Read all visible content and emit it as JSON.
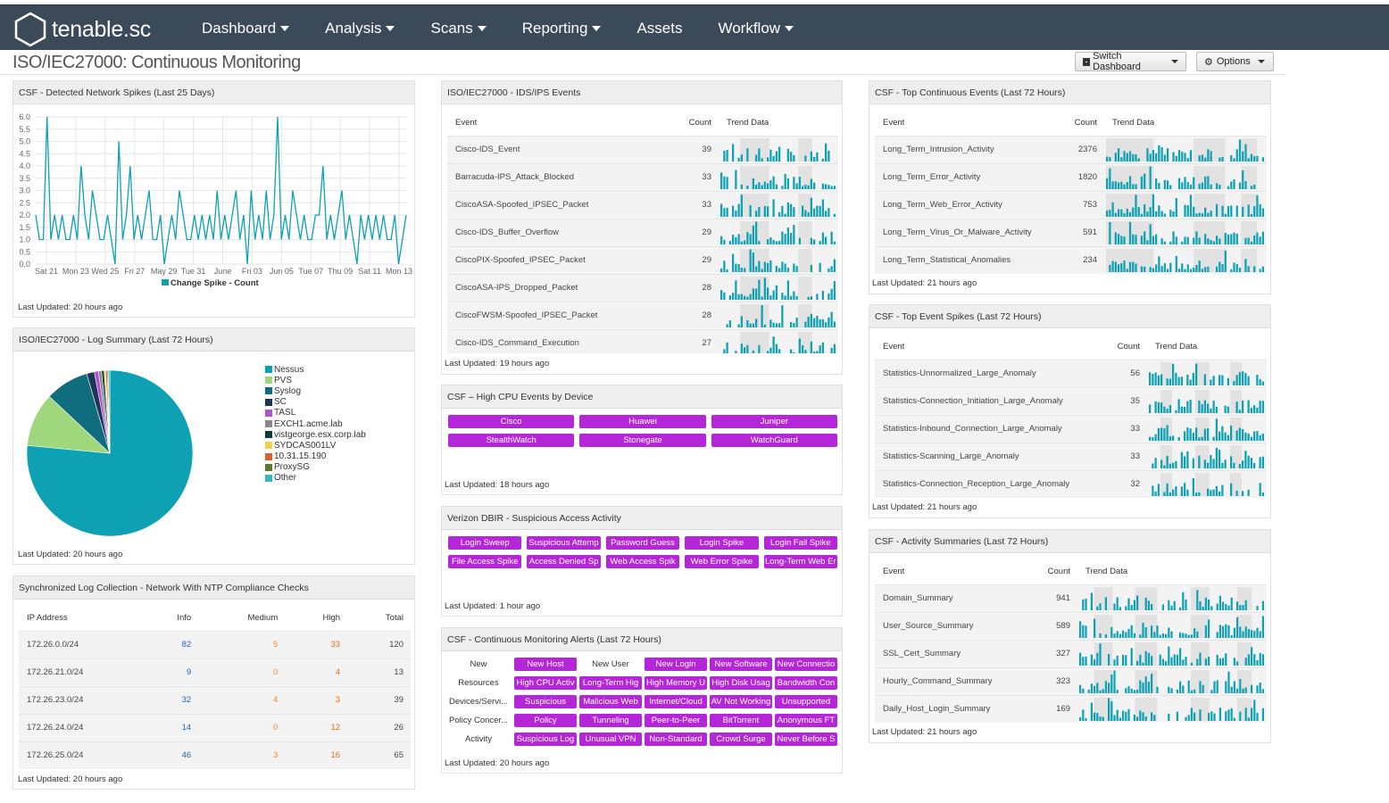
{
  "app": {
    "logo": "tenable.sc",
    "title": "ISO/IEC27000: Continuous Monitoring"
  },
  "nav": [
    "Dashboard",
    "Analysis",
    "Scans",
    "Reporting",
    "Assets",
    "Workflow"
  ],
  "nav_dropdown": [
    true,
    true,
    true,
    true,
    false,
    true
  ],
  "toolbar": {
    "switch_label": "Switch Dashboard",
    "options_label": "Options"
  },
  "colors": {
    "teal": "#0da1b3",
    "purple": "#b526d8",
    "header_bar": "#3b4a59",
    "info": "#2c5fa8",
    "medium": "#f0882a",
    "high": "#e36c1a"
  },
  "spike": {
    "title": "CSF - Detected Network Spikes (Last 25 Days)",
    "legend": "Change Spike - Count",
    "updated": "Last Updated: 20 hours ago",
    "yticks": [
      "0.0",
      "0.5",
      "1.0",
      "1.5",
      "2.0",
      "2.5",
      "3.0",
      "3.5",
      "4.0",
      "4.5",
      "5.0",
      "5.5",
      "6.0"
    ],
    "xticks": [
      "Sat 21",
      "Mon 23",
      "Wed 25",
      "Fri 27",
      "May 29",
      "Tue 31",
      "June",
      "Fri 03",
      "Jun 05",
      "Tue 07",
      "Thu 09",
      "Sat 11",
      "Mon 13"
    ]
  },
  "chart_data": [
    {
      "type": "line",
      "title": "CSF - Detected Network Spikes (Last 25 Days)",
      "series": [
        {
          "name": "Change Spike - Count",
          "values": [
            2,
            1,
            1,
            6,
            1,
            2,
            1,
            2,
            1,
            1,
            2,
            1,
            4,
            2,
            1,
            3,
            2,
            1,
            1,
            2,
            1,
            0,
            5,
            1,
            2,
            4,
            1,
            2,
            1,
            2,
            3,
            1,
            1,
            2,
            0,
            1,
            2,
            1,
            3,
            2,
            1,
            1,
            2,
            1,
            2,
            1,
            2,
            1,
            3,
            1,
            2,
            1,
            2,
            3,
            1,
            2,
            0,
            3,
            1,
            2,
            1,
            3,
            1,
            2,
            6,
            1,
            2,
            1,
            3,
            2,
            1,
            2,
            1,
            1,
            2,
            2,
            4,
            1,
            2,
            1,
            2,
            3,
            1,
            2,
            1,
            0,
            2,
            1,
            2,
            1,
            2,
            1,
            2,
            1,
            1,
            2,
            0,
            1,
            2
          ]
        }
      ],
      "xlabel": "",
      "ylabel": "",
      "ylim": [
        0,
        6
      ],
      "xticks": [
        "Sat 21",
        "Mon 23",
        "Wed 25",
        "Fri 27",
        "May 29",
        "Tue 31",
        "June",
        "Fri 03",
        "Jun 05",
        "Tue 07",
        "Thu 09",
        "Sat 11",
        "Mon 13"
      ]
    },
    {
      "type": "pie",
      "title": "ISO/IEC27000 - Log Summary (Last 72 Hours)",
      "categories": [
        "Nessus",
        "PVS",
        "Syslog",
        "SC",
        "TASL",
        "EXCH1.acme.lab",
        "vistgeorge.esx.corp.lab",
        "SYDCAS001LV",
        "10.31.15.190",
        "ProxySG",
        "Other"
      ],
      "values": [
        76.5,
        10.5,
        8.5,
        1.5,
        0.8,
        0.6,
        0.5,
        0.3,
        0.3,
        0.2,
        0.3
      ],
      "colors": [
        "#0da1b3",
        "#9ed77c",
        "#0f6d7e",
        "#1d3557",
        "#b14fd0",
        "#888888",
        "#0d3d3d",
        "#f3d34a",
        "#d9632a",
        "#5a7d2a",
        "#35b6c4"
      ]
    }
  ],
  "log": {
    "title": "ISO/IEC27000 - Log Summary (Last 72 Hours)",
    "updated": "Last Updated: 20 hours ago"
  },
  "ntp": {
    "title": "Synchronized Log Collection - Network With NTP Compliance Checks",
    "headers": [
      "IP Address",
      "Info",
      "Medium",
      "High",
      "Total"
    ],
    "rows": [
      [
        "172.26.0.0/24",
        "82",
        "5",
        "33",
        "120"
      ],
      [
        "172.26.21.0/24",
        "9",
        "0",
        "4",
        "13"
      ],
      [
        "172.26.23.0/24",
        "32",
        "4",
        "3",
        "39"
      ],
      [
        "172.26.24.0/24",
        "14",
        "0",
        "12",
        "26"
      ],
      [
        "172.26.25.0/24",
        "46",
        "3",
        "16",
        "65"
      ]
    ],
    "updated": "Last Updated: 20 hours ago"
  },
  "ids": {
    "title": "ISO/IEC27000 - IDS/IPS Events",
    "headers": [
      "Event",
      "Count",
      "Trend Data"
    ],
    "rows": [
      [
        "Cisco-IDS_Event",
        "39"
      ],
      [
        "Barracuda-IPS_Attack_Blocked",
        "33"
      ],
      [
        "CiscoASA-Spoofed_IPSEC_Packet",
        "33"
      ],
      [
        "Cisco-IDS_Buffer_Overflow",
        "29"
      ],
      [
        "CiscoPIX-Spoofed_IPSEC_Packet",
        "29"
      ],
      [
        "CiscoASA-IPS_Dropped_Packet",
        "28"
      ],
      [
        "CiscoFWSM-Spoofed_IPSEC_Packet",
        "28"
      ],
      [
        "Cisco-IDS_Command_Execution",
        "27"
      ]
    ],
    "updated": "Last Updated: 19 hours ago"
  },
  "cpu": {
    "title": "CSF – High CPU Events by Device",
    "buttons": [
      "Cisco",
      "Huawei",
      "Juniper",
      "StealthWatch",
      "Stonegate",
      "WatchGuard"
    ],
    "updated": "Last Updated: 18 hours ago"
  },
  "dbir": {
    "title": "Verizon DBIR - Suspicious Access Activity",
    "buttons": [
      "Login Sweep",
      "Suspicious Attemp",
      "Password Guess",
      "Login Spike",
      "Login Fail Spike",
      "File Access Spike",
      "Access Denied Sp",
      "Web Access Spik",
      "Web Error Spike",
      "Long-Term Web Er"
    ],
    "updated": "Last Updated: 1 hour ago"
  },
  "alerts": {
    "title": "CSF - Continuous Monitoring Alerts (Last 72 Hours)",
    "rows": [
      {
        "label": "New",
        "cells": [
          "New Host",
          "New User",
          "New Login",
          "New Software",
          "New Connectio"
        ]
      },
      {
        "label": "Resources",
        "cells": [
          "High CPU Activ",
          "Long-Term Hig",
          "High Memory U",
          "High Disk Usag",
          "Bandwidth Con"
        ]
      },
      {
        "label": "Devices/Servi...",
        "cells": [
          "Suspicious",
          "Malicious Web",
          "Internet/Cloud",
          "AV Not Working",
          "Unsupported"
        ]
      },
      {
        "label": "Policy Concer...",
        "cells": [
          "Policy",
          "Tunneling",
          "Peer-to-Peer",
          "BitTorrent",
          "Anonymous FT"
        ]
      },
      {
        "label": "Activity",
        "cells": [
          "Suspicious Log",
          "Unusual VPN",
          "Non-Standard",
          "Crowd Surge",
          "Never Before S"
        ]
      }
    ],
    "updated": "Last Updated: 20 hours ago"
  },
  "cont": {
    "title": "CSF - Top Continuous Events (Last 72 Hours)",
    "headers": [
      "Event",
      "Count",
      "Trend Data"
    ],
    "rows": [
      [
        "Long_Term_Intrusion_Activity",
        "2376"
      ],
      [
        "Long_Term_Error_Activity",
        "1820"
      ],
      [
        "Long_Term_Web_Error_Activity",
        "753"
      ],
      [
        "Long_Term_Virus_Or_Malware_Activity",
        "591"
      ],
      [
        "Long_Term_Statistical_Anomalies",
        "234"
      ]
    ],
    "updated": "Last Updated: 21 hours ago"
  },
  "spikes": {
    "title": "CSF - Top Event Spikes (Last 72 Hours)",
    "headers": [
      "Event",
      "Count",
      "Trend Data"
    ],
    "rows": [
      [
        "Statistics-Unnormalized_Large_Anomaly",
        "56"
      ],
      [
        "Statistics-Connection_Initiation_Large_Anomaly",
        "35"
      ],
      [
        "Statistics-Inbound_Connection_Large_Anomaly",
        "33"
      ],
      [
        "Statistics-Scanning_Large_Anomaly",
        "33"
      ],
      [
        "Statistics-Connection_Reception_Large_Anomaly",
        "32"
      ]
    ],
    "updated": "Last Updated: 21 hours ago"
  },
  "act": {
    "title": "CSF - Activity Summaries (Last 72 Hours)",
    "headers": [
      "Event",
      "Count",
      "Trend Data"
    ],
    "rows": [
      [
        "Domain_Summary",
        "941"
      ],
      [
        "User_Source_Summary",
        "589"
      ],
      [
        "SSL_Cert_Summary",
        "327"
      ],
      [
        "Hourly_Command_Summary",
        "323"
      ],
      [
        "Daily_Host_Login_Summary",
        "169"
      ]
    ],
    "updated": "Last Updated: 21 hours ago"
  }
}
